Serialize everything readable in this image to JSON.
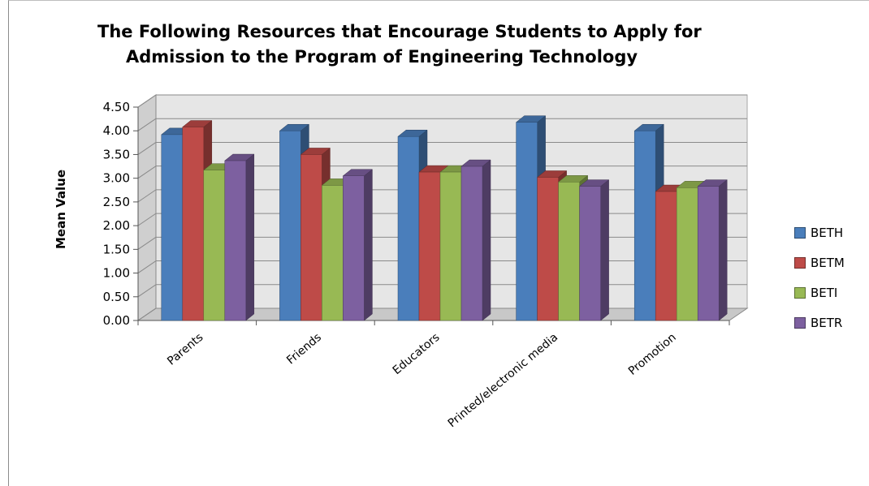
{
  "chart_data": {
    "type": "bar",
    "title_lines": [
      "The Following Resources that Encourage Students to Apply for",
      "Admission to the Program of Engineering Technology"
    ],
    "ylabel": "Mean Value",
    "xlabel": "",
    "ylim": [
      0,
      4.5
    ],
    "yticks": [
      "0.00",
      "0.50",
      "1.00",
      "1.50",
      "2.00",
      "2.50",
      "3.00",
      "3.50",
      "4.00",
      "4.50"
    ],
    "categories": [
      "Parents",
      "Friends",
      "Educators",
      "Printed/electronic media",
      "Promotion"
    ],
    "series": [
      {
        "name": "BETH",
        "color": "#4a7ebb",
        "values": [
          3.92,
          4.0,
          3.88,
          4.18,
          4.0
        ]
      },
      {
        "name": "BETM",
        "color": "#be4b48",
        "values": [
          4.08,
          3.5,
          3.13,
          3.02,
          2.72
        ]
      },
      {
        "name": "BETI",
        "color": "#98b954",
        "values": [
          3.17,
          2.85,
          3.13,
          2.92,
          2.8
        ]
      },
      {
        "name": "BETR",
        "color": "#7d60a0",
        "values": [
          3.37,
          3.05,
          3.25,
          2.83,
          2.83
        ]
      }
    ],
    "grid": true,
    "style": "3d-clustered-column",
    "legend_position": "right"
  }
}
